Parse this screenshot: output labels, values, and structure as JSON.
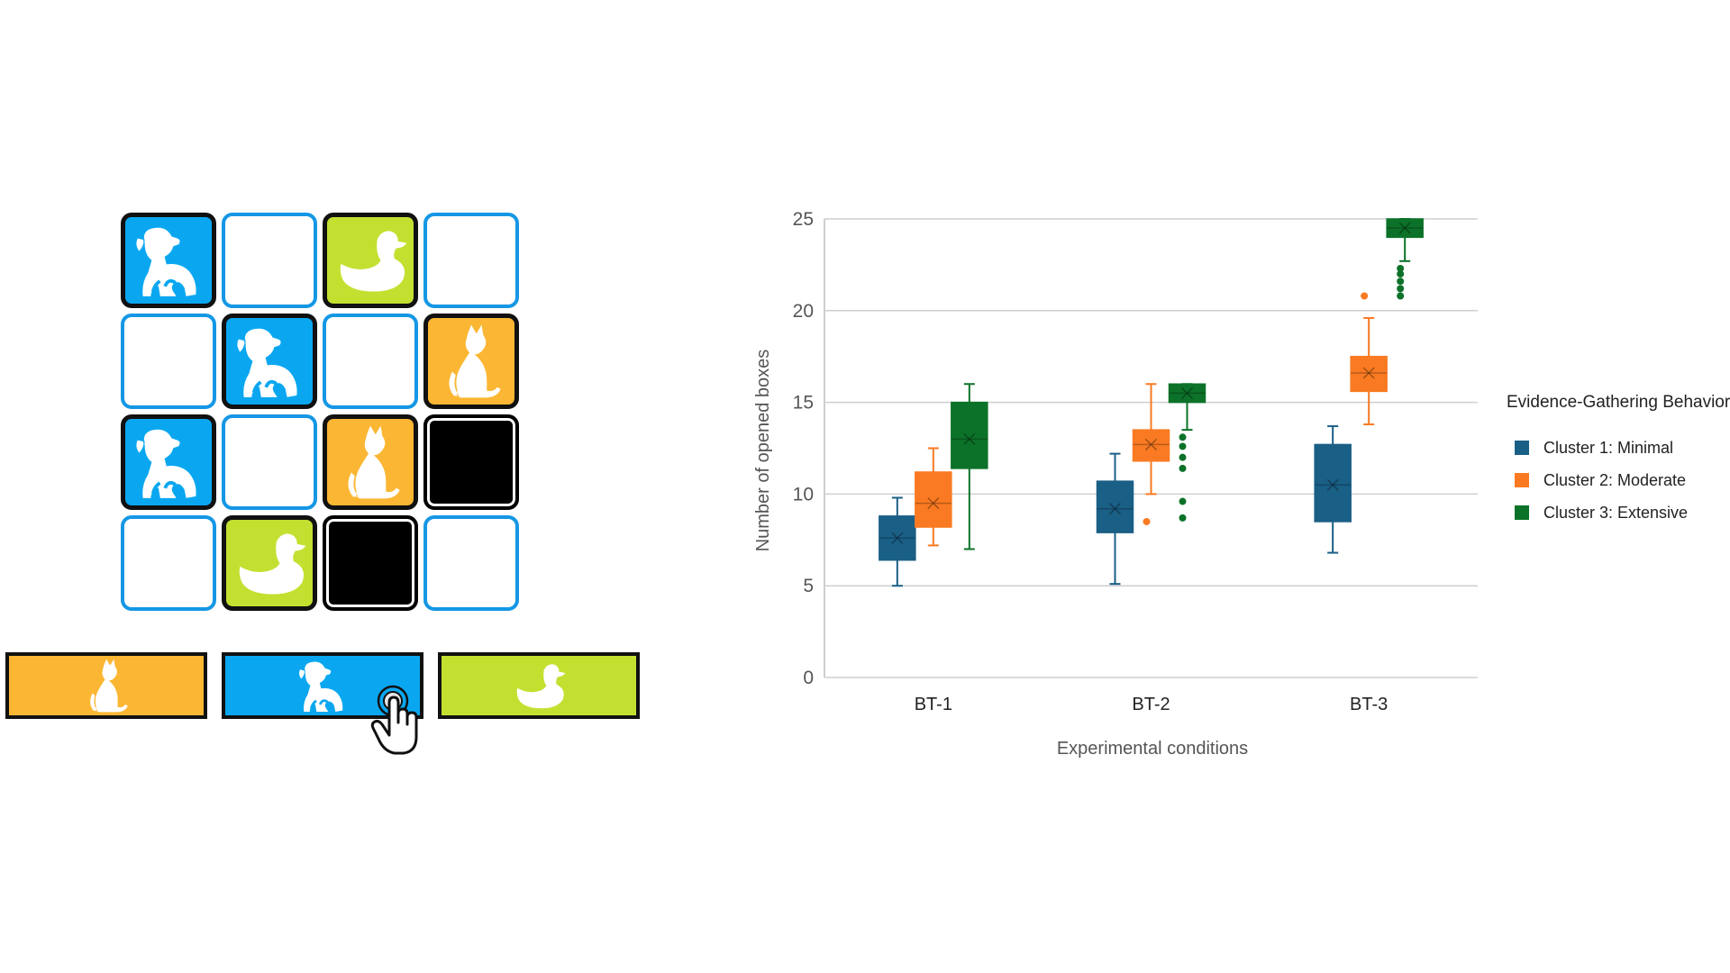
{
  "game": {
    "tile_colors": {
      "dog": "#0aa7f0",
      "cat": "#fbb633",
      "duck": "#c3e031",
      "closed_border": "#1597e5",
      "black": "#000000"
    },
    "grid": [
      [
        "dog",
        "closed",
        "duck",
        "closed"
      ],
      [
        "closed",
        "dog",
        "closed",
        "cat"
      ],
      [
        "dog",
        "closed",
        "cat",
        "black"
      ],
      [
        "closed",
        "duck",
        "black",
        "closed"
      ]
    ],
    "choices": [
      {
        "animal": "cat",
        "icon": "cat-icon"
      },
      {
        "animal": "dog",
        "icon": "dog-icon"
      },
      {
        "animal": "duck",
        "icon": "duck-icon"
      }
    ],
    "cursor_icon": "hand-cursor-icon",
    "selected_choice": "dog"
  },
  "chart_data": {
    "type": "box",
    "title": "",
    "xlabel": "Experimental conditions",
    "ylabel": "Number of opened boxes",
    "ylim": [
      0,
      25
    ],
    "yticks": [
      0,
      5,
      10,
      15,
      20,
      25
    ],
    "grid": true,
    "categories": [
      "BT-1",
      "BT-2",
      "BT-3"
    ],
    "legend": {
      "title": "Evidence-Gathering Behavior",
      "position": "right"
    },
    "series": [
      {
        "name": "Cluster 1: Minimal",
        "color": "#1a5f86",
        "boxes": [
          {
            "min": 5,
            "q1": 6.4,
            "median": 7.6,
            "mean": 7.6,
            "q3": 8.8,
            "max": 9.8,
            "outliers": []
          },
          {
            "min": 5.1,
            "q1": 7.9,
            "median": 9.2,
            "mean": 9.2,
            "q3": 10.7,
            "max": 12.2,
            "outliers": []
          },
          {
            "min": 6.8,
            "q1": 8.5,
            "median": 10.5,
            "mean": 10.5,
            "q3": 12.7,
            "max": 13.7,
            "outliers": []
          }
        ]
      },
      {
        "name": "Cluster 2: Moderate",
        "color": "#f97a22",
        "boxes": [
          {
            "min": 7.2,
            "q1": 8.2,
            "median": 9.5,
            "mean": 9.5,
            "q3": 11.2,
            "max": 12.5,
            "outliers": []
          },
          {
            "min": 10,
            "q1": 11.8,
            "median": 12.7,
            "mean": 12.7,
            "q3": 13.5,
            "max": 16,
            "outliers": [
              8.5
            ]
          },
          {
            "min": 13.8,
            "q1": 15.6,
            "median": 16.6,
            "mean": 16.6,
            "q3": 17.5,
            "max": 19.6,
            "outliers": [
              20.8
            ]
          }
        ]
      },
      {
        "name": "Cluster 3: Extensive",
        "color": "#0c7229",
        "boxes": [
          {
            "min": 7,
            "q1": 11.4,
            "median": 13,
            "mean": 13,
            "q3": 15,
            "max": 16,
            "outliers": []
          },
          {
            "min": 13.5,
            "q1": 15,
            "median": 15.5,
            "mean": 15.5,
            "q3": 16,
            "max": 16,
            "outliers": [
              8.7,
              9.6,
              11.4,
              12,
              12.6,
              13.1
            ]
          },
          {
            "min": 22.7,
            "q1": 24,
            "median": 24.5,
            "mean": 24.5,
            "q3": 25,
            "max": 25,
            "outliers": [
              20.8,
              21.2,
              21.6,
              22,
              22.3
            ]
          }
        ]
      }
    ]
  }
}
